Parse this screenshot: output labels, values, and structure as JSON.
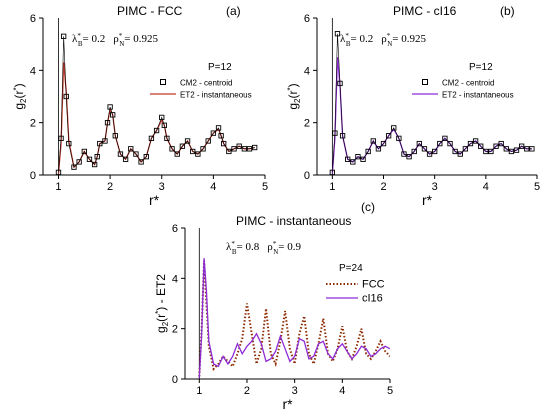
{
  "chart_data": [
    {
      "type": "line",
      "panel_label": "(a)",
      "title": "PIMC - FCC",
      "params": {
        "lambda_label": "λ",
        "lambda_sub": "B",
        "lambda_value": "= 0.2",
        "rho_label": "ρ",
        "rho_sub": "N",
        "rho_value": "= 0.925"
      },
      "legend_title": "P=12",
      "xlabel": "r*",
      "ylabel": {
        "main": "g",
        "sub": "2",
        "rest": "(r",
        "sup": "*",
        "end": ")"
      },
      "xlim": [
        0.7,
        5.0
      ],
      "ylim": [
        0,
        6
      ],
      "xticks": [
        1,
        2,
        3,
        4,
        5
      ],
      "yticks": [
        0,
        2,
        4,
        6
      ],
      "vline": 1.0,
      "series": [
        {
          "name": "CM2 - centroid",
          "marker": "square",
          "color": "#000000",
          "x": [
            1.0,
            1.05,
            1.1,
            1.15,
            1.2,
            1.3,
            1.4,
            1.5,
            1.6,
            1.7,
            1.75,
            1.8,
            1.9,
            1.95,
            2.0,
            2.05,
            2.1,
            2.2,
            2.3,
            2.4,
            2.5,
            2.6,
            2.7,
            2.8,
            2.9,
            3.0,
            3.05,
            3.1,
            3.2,
            3.3,
            3.4,
            3.5,
            3.6,
            3.7,
            3.8,
            3.9,
            4.0,
            4.1,
            4.15,
            4.2,
            4.3,
            4.4,
            4.5,
            4.6,
            4.7,
            4.8
          ],
          "values": [
            0.1,
            1.4,
            5.3,
            3.0,
            1.2,
            0.3,
            0.5,
            0.9,
            0.6,
            0.4,
            0.7,
            1.2,
            1.3,
            2.0,
            2.6,
            2.3,
            1.5,
            0.8,
            0.6,
            1.0,
            0.8,
            0.5,
            0.7,
            1.4,
            1.7,
            2.2,
            1.9,
            1.4,
            1.0,
            0.8,
            1.1,
            1.3,
            0.9,
            0.8,
            1.0,
            1.3,
            1.6,
            1.8,
            1.5,
            1.2,
            0.9,
            1.0,
            1.1,
            1.0,
            1.0,
            1.05
          ]
        },
        {
          "name": "ET2 - instantaneous",
          "marker": "line",
          "color": "#c0392b",
          "x": [
            1.0,
            1.05,
            1.1,
            1.15,
            1.2,
            1.3,
            1.4,
            1.5,
            1.6,
            1.7,
            1.75,
            1.8,
            1.9,
            1.95,
            2.0,
            2.05,
            2.1,
            2.2,
            2.3,
            2.4,
            2.5,
            2.6,
            2.7,
            2.8,
            2.9,
            3.0,
            3.05,
            3.1,
            3.2,
            3.3,
            3.4,
            3.5,
            3.6,
            3.7,
            3.8,
            3.9,
            4.0,
            4.1,
            4.15,
            4.2,
            4.3,
            4.4,
            4.5,
            4.6,
            4.7,
            4.8
          ],
          "values": [
            0.05,
            1.2,
            4.3,
            3.2,
            1.3,
            0.3,
            0.5,
            0.9,
            0.6,
            0.4,
            0.7,
            1.2,
            1.3,
            2.0,
            2.5,
            2.3,
            1.5,
            0.8,
            0.6,
            1.0,
            0.8,
            0.5,
            0.7,
            1.4,
            1.7,
            2.1,
            1.9,
            1.4,
            1.0,
            0.8,
            1.1,
            1.3,
            0.9,
            0.8,
            1.0,
            1.3,
            1.6,
            1.75,
            1.5,
            1.2,
            0.9,
            1.0,
            1.1,
            1.0,
            1.0,
            1.05
          ]
        }
      ]
    },
    {
      "type": "line",
      "panel_label": "(b)",
      "title": "PIMC - cI16",
      "params": {
        "lambda_label": "λ",
        "lambda_sub": "B",
        "lambda_value": "= 0.2",
        "rho_label": "ρ",
        "rho_sub": "N",
        "rho_value": "= 0.925"
      },
      "legend_title": "P=12",
      "xlabel": "r*",
      "ylabel": {
        "main": "g",
        "sub": "2",
        "rest": "(r",
        "sup": "*",
        "end": ")"
      },
      "xlim": [
        0.7,
        5.0
      ],
      "ylim": [
        0,
        6
      ],
      "xticks": [
        1,
        2,
        3,
        4,
        5
      ],
      "yticks": [
        0,
        2,
        4,
        6
      ],
      "vline": 1.0,
      "series": [
        {
          "name": "CM2 - centroid",
          "marker": "square",
          "color": "#000000",
          "x": [
            1.0,
            1.05,
            1.1,
            1.15,
            1.2,
            1.3,
            1.4,
            1.5,
            1.6,
            1.7,
            1.8,
            1.9,
            2.0,
            2.1,
            2.2,
            2.3,
            2.4,
            2.5,
            2.6,
            2.7,
            2.8,
            2.9,
            3.0,
            3.1,
            3.2,
            3.3,
            3.4,
            3.5,
            3.6,
            3.7,
            3.8,
            3.9,
            4.0,
            4.1,
            4.2,
            4.3,
            4.4,
            4.5,
            4.6,
            4.7,
            4.8,
            4.9
          ],
          "values": [
            0.1,
            1.6,
            5.4,
            3.5,
            1.5,
            0.6,
            0.5,
            0.7,
            0.6,
            0.9,
            1.3,
            1.0,
            1.2,
            1.5,
            1.8,
            1.4,
            0.8,
            0.7,
            0.9,
            1.2,
            1.0,
            0.8,
            0.9,
            1.2,
            1.4,
            1.2,
            0.9,
            0.8,
            1.0,
            1.2,
            1.3,
            1.1,
            0.9,
            0.9,
            1.1,
            1.2,
            1.0,
            0.9,
            0.95,
            1.1,
            1.0,
            1.0
          ]
        },
        {
          "name": "ET2 - instantaneous",
          "marker": "line",
          "color": "#8e2bd6",
          "x": [
            1.0,
            1.05,
            1.1,
            1.15,
            1.2,
            1.3,
            1.4,
            1.5,
            1.6,
            1.7,
            1.8,
            1.9,
            2.0,
            2.1,
            2.2,
            2.3,
            2.4,
            2.5,
            2.6,
            2.7,
            2.8,
            2.9,
            3.0,
            3.1,
            3.2,
            3.3,
            3.4,
            3.5,
            3.6,
            3.7,
            3.8,
            3.9,
            4.0,
            4.1,
            4.2,
            4.3,
            4.4,
            4.5,
            4.6,
            4.7,
            4.8,
            4.9
          ],
          "values": [
            0.05,
            1.4,
            4.5,
            3.4,
            1.5,
            0.6,
            0.5,
            0.7,
            0.6,
            0.9,
            1.3,
            1.0,
            1.2,
            1.5,
            1.75,
            1.4,
            0.8,
            0.7,
            0.9,
            1.2,
            1.0,
            0.8,
            0.9,
            1.2,
            1.4,
            1.2,
            0.9,
            0.8,
            1.0,
            1.2,
            1.3,
            1.1,
            0.9,
            0.9,
            1.1,
            1.2,
            1.0,
            0.9,
            0.95,
            1.1,
            1.0,
            1.0
          ]
        }
      ]
    },
    {
      "type": "line",
      "panel_label": "(c)",
      "title": "PIMC - instantaneous",
      "params": {
        "lambda_label": "λ",
        "lambda_sub": "B",
        "lambda_value": "= 0.8",
        "rho_label": "ρ",
        "rho_sub": "N",
        "rho_value": "= 0.9"
      },
      "legend_title": "P=24",
      "xlabel": "r*",
      "ylabel": {
        "main": "g",
        "sub": "2",
        "rest": "(r",
        "sup": "*",
        "end": ") - ET2"
      },
      "xlim": [
        0.7,
        5.0
      ],
      "ylim": [
        0,
        6
      ],
      "xticks": [
        1,
        2,
        3,
        4,
        5
      ],
      "yticks": [
        0,
        2,
        4,
        6
      ],
      "vline": 1.0,
      "series": [
        {
          "name": "FCC",
          "marker": "dotted",
          "color": "#8b2a00",
          "x": [
            1.0,
            1.05,
            1.1,
            1.15,
            1.2,
            1.3,
            1.4,
            1.5,
            1.6,
            1.7,
            1.8,
            1.9,
            2.0,
            2.1,
            2.2,
            2.3,
            2.4,
            2.5,
            2.6,
            2.7,
            2.8,
            2.9,
            3.0,
            3.1,
            3.2,
            3.3,
            3.4,
            3.5,
            3.6,
            3.7,
            3.8,
            3.9,
            4.0,
            4.1,
            4.2,
            4.3,
            4.4,
            4.5,
            4.6,
            4.7,
            4.8,
            4.9,
            5.0
          ],
          "values": [
            0.1,
            2.0,
            4.7,
            3.0,
            1.3,
            0.4,
            0.6,
            0.9,
            0.7,
            0.5,
            1.0,
            1.6,
            3.0,
            1.8,
            0.6,
            1.2,
            2.8,
            1.0,
            0.6,
            1.5,
            2.7,
            1.2,
            0.6,
            1.8,
            2.5,
            1.0,
            0.6,
            1.4,
            2.4,
            1.0,
            0.7,
            1.2,
            2.1,
            1.1,
            0.8,
            1.3,
            2.0,
            1.0,
            0.8,
            1.1,
            1.5,
            1.1,
            0.9
          ]
        },
        {
          "name": "cI16",
          "marker": "line",
          "color": "#8e2bd6",
          "x": [
            1.0,
            1.05,
            1.1,
            1.15,
            1.2,
            1.3,
            1.4,
            1.5,
            1.6,
            1.7,
            1.8,
            1.9,
            2.0,
            2.1,
            2.2,
            2.3,
            2.4,
            2.5,
            2.6,
            2.7,
            2.8,
            2.9,
            3.0,
            3.1,
            3.2,
            3.3,
            3.4,
            3.5,
            3.6,
            3.7,
            3.8,
            3.9,
            4.0,
            4.1,
            4.2,
            4.3,
            4.4,
            4.5,
            4.6,
            4.7,
            4.8,
            4.9,
            5.0
          ],
          "values": [
            0.05,
            1.8,
            4.8,
            3.5,
            1.5,
            0.6,
            0.5,
            0.9,
            0.6,
            0.9,
            1.4,
            1.0,
            1.3,
            1.5,
            1.8,
            1.4,
            0.7,
            0.8,
            1.1,
            1.7,
            1.2,
            0.7,
            0.9,
            1.6,
            1.5,
            0.8,
            0.9,
            1.4,
            1.5,
            1.0,
            0.8,
            1.2,
            1.4,
            1.1,
            0.8,
            1.0,
            1.3,
            1.2,
            0.9,
            1.0,
            1.2,
            1.3,
            1.2
          ]
        }
      ]
    }
  ]
}
